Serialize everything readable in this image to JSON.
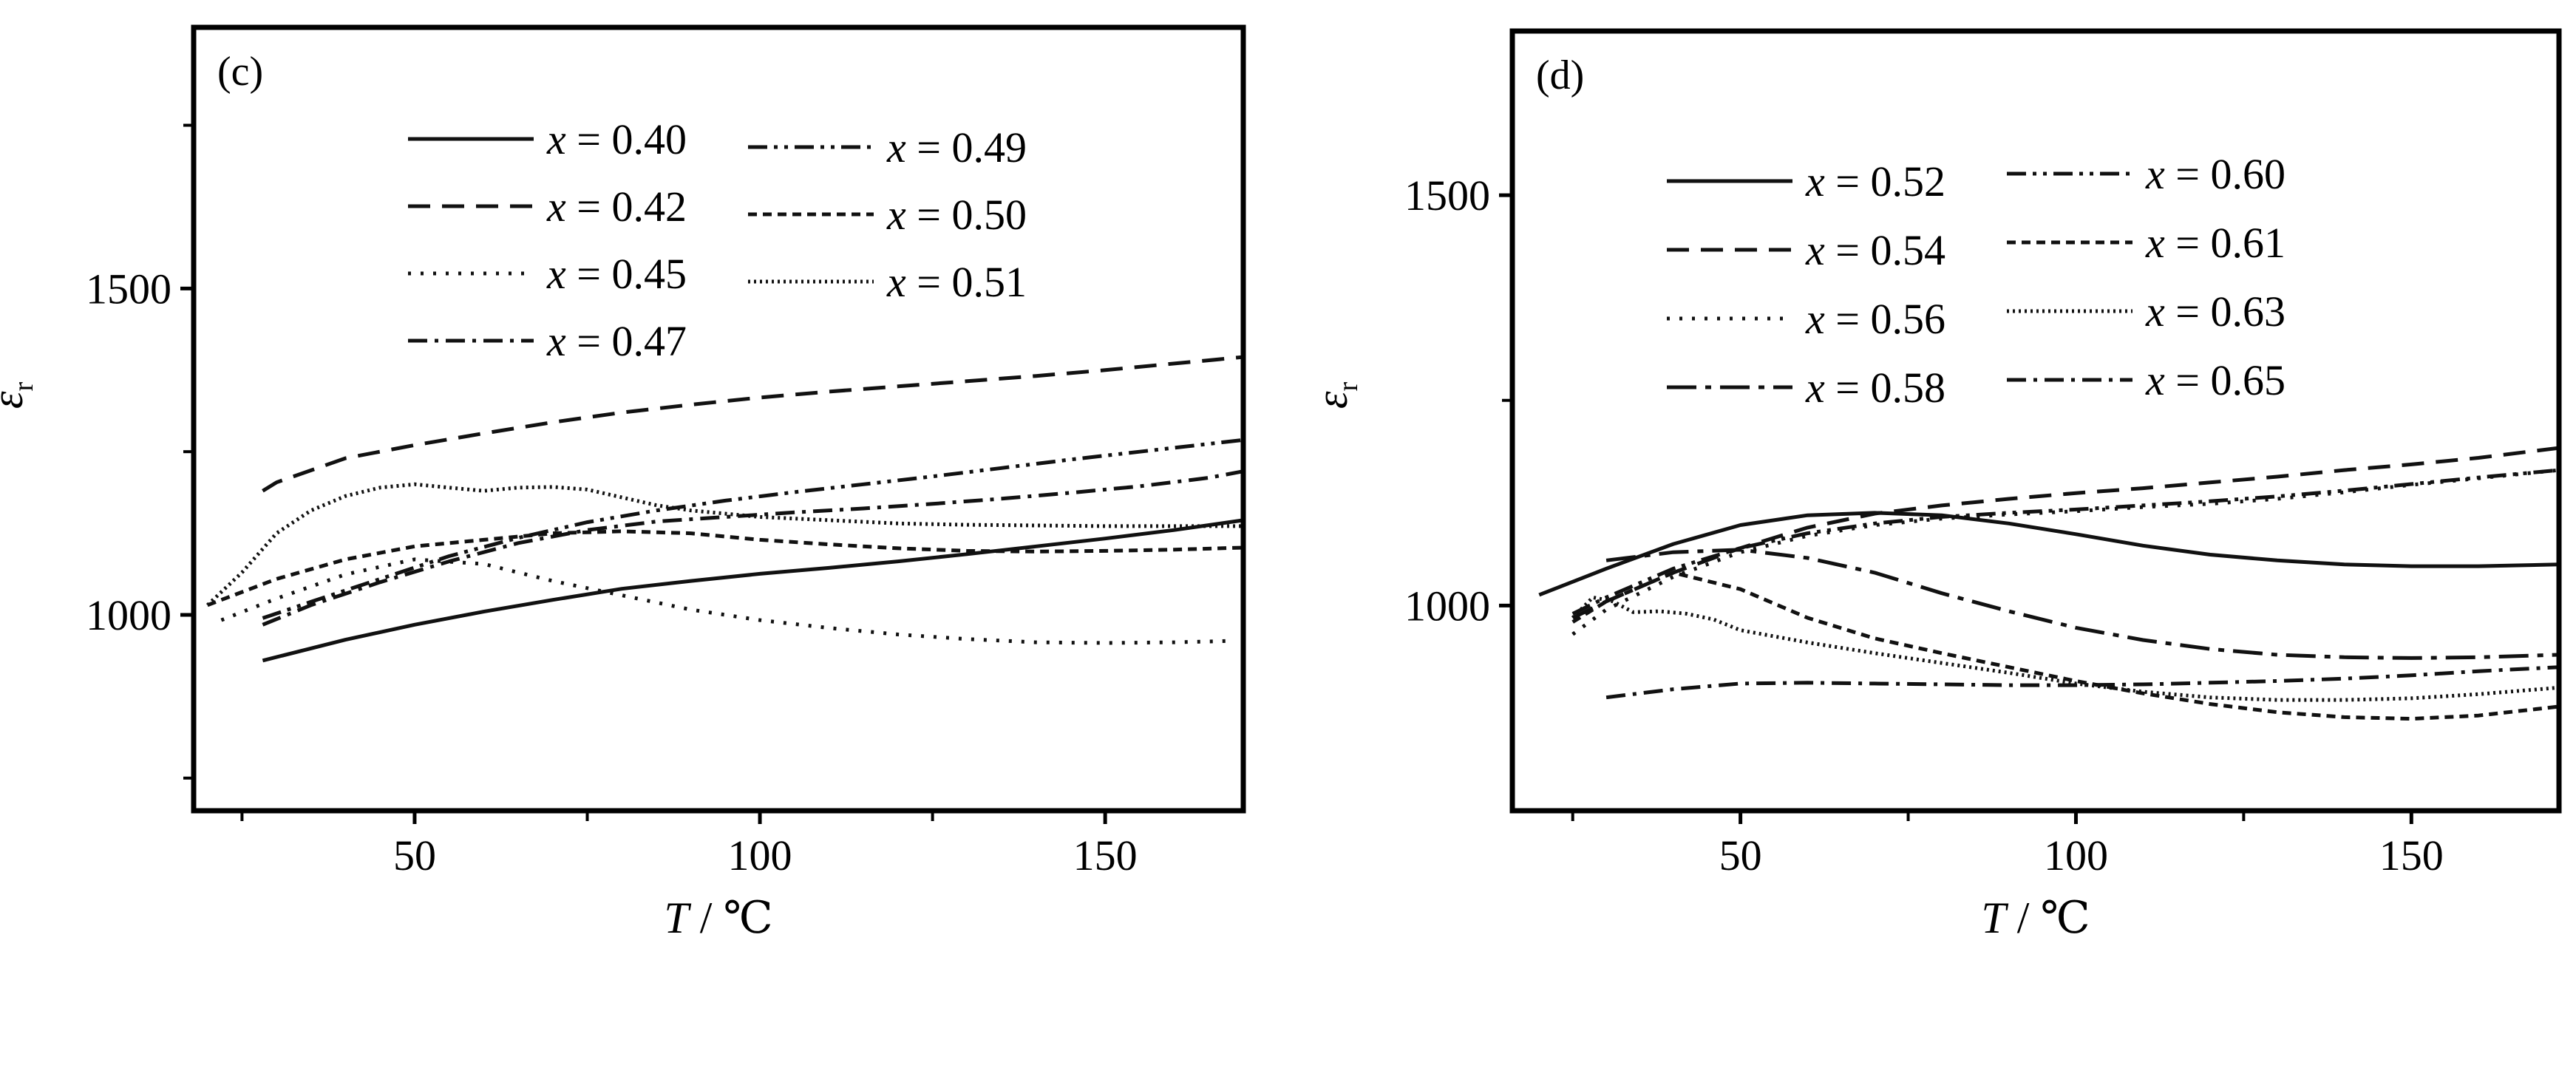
{
  "chart_data": [
    {
      "type": "line",
      "panel_label": "(c)",
      "xlabel_var": "T",
      "xlabel_unit": " / ℃",
      "ylabel_var": "ε",
      "ylabel_sub": "r",
      "xlim": [
        18,
        170
      ],
      "ylim": [
        700,
        1900
      ],
      "xticks": [
        50,
        100,
        150
      ],
      "yticks": [
        1000,
        1500
      ],
      "legend_position": "top",
      "grid": false,
      "series": [
        {
          "name": "x = 0.40",
          "dash": "solid",
          "x": [
            28,
            40,
            50,
            60,
            70,
            80,
            90,
            100,
            110,
            120,
            130,
            140,
            150,
            160,
            170
          ],
          "y": [
            930,
            962,
            985,
            1005,
            1023,
            1040,
            1052,
            1063,
            1072,
            1082,
            1093,
            1105,
            1117,
            1130,
            1145
          ]
        },
        {
          "name": "x = 0.42",
          "dash": "dashed",
          "x": [
            28,
            30,
            40,
            50,
            60,
            70,
            80,
            90,
            100,
            110,
            120,
            130,
            140,
            150,
            160,
            170
          ],
          "y": [
            1190,
            1203,
            1240,
            1260,
            1278,
            1295,
            1310,
            1322,
            1333,
            1342,
            1350,
            1358,
            1366,
            1375,
            1385,
            1395
          ]
        },
        {
          "name": "x = 0.45",
          "dash": "dotted",
          "x": [
            22,
            30,
            40,
            50,
            60,
            70,
            80,
            90,
            100,
            110,
            120,
            130,
            140,
            150,
            160,
            168
          ],
          "y": [
            992,
            1025,
            1062,
            1085,
            1078,
            1052,
            1030,
            1008,
            992,
            980,
            970,
            963,
            958,
            957,
            958,
            960
          ]
        },
        {
          "name": "x = 0.47",
          "dash": "dashdot",
          "x": [
            28,
            35,
            45,
            55,
            65,
            75,
            85,
            95,
            105,
            115,
            125,
            135,
            145,
            155,
            165,
            170
          ],
          "y": [
            985,
            1015,
            1050,
            1082,
            1110,
            1130,
            1143,
            1150,
            1157,
            1163,
            1170,
            1178,
            1187,
            1197,
            1210,
            1220
          ]
        },
        {
          "name": "x = 0.49",
          "dash": "dashdotdot",
          "x": [
            28,
            35,
            45,
            55,
            65,
            75,
            85,
            95,
            105,
            115,
            125,
            135,
            145,
            155,
            165,
            170
          ],
          "y": [
            995,
            1020,
            1055,
            1090,
            1118,
            1142,
            1160,
            1175,
            1188,
            1200,
            1212,
            1225,
            1238,
            1250,
            1262,
            1268
          ]
        },
        {
          "name": "x = 0.50",
          "dash": "shortdash",
          "x": [
            20,
            30,
            40,
            50,
            60,
            70,
            80,
            90,
            100,
            110,
            120,
            130,
            140,
            150,
            160,
            170
          ],
          "y": [
            1015,
            1055,
            1085,
            1105,
            1115,
            1125,
            1128,
            1125,
            1115,
            1108,
            1102,
            1098,
            1097,
            1098,
            1100,
            1103
          ]
        },
        {
          "name": "x = 0.51",
          "dash": "finedot",
          "x": [
            20,
            25,
            30,
            35,
            40,
            45,
            50,
            55,
            60,
            65,
            70,
            75,
            80,
            85,
            90,
            100,
            110,
            120,
            130,
            140,
            150,
            160,
            170
          ],
          "y": [
            1015,
            1065,
            1125,
            1160,
            1182,
            1195,
            1200,
            1195,
            1190,
            1195,
            1196,
            1192,
            1180,
            1168,
            1160,
            1150,
            1145,
            1140,
            1138,
            1137,
            1136,
            1136,
            1136
          ]
        }
      ]
    },
    {
      "type": "line",
      "panel_label": "(d)",
      "xlabel_var": "T",
      "xlabel_unit": " / ℃",
      "ylabel_var": "ε",
      "ylabel_sub": "r",
      "xlim": [
        16,
        172
      ],
      "ylim": [
        750,
        1700
      ],
      "xticks": [
        50,
        100,
        150
      ],
      "yticks": [
        1000,
        1500
      ],
      "legend_position": "top",
      "grid": false,
      "series": [
        {
          "name": "x = 0.52",
          "dash": "solid",
          "x": [
            20,
            30,
            40,
            50,
            60,
            70,
            80,
            90,
            100,
            110,
            120,
            130,
            140,
            150,
            160,
            172
          ],
          "y": [
            1013,
            1045,
            1075,
            1098,
            1110,
            1113,
            1110,
            1100,
            1087,
            1073,
            1062,
            1055,
            1050,
            1048,
            1048,
            1050
          ]
        },
        {
          "name": "x = 0.54",
          "dash": "dashed",
          "x": [
            25,
            30,
            40,
            50,
            60,
            70,
            80,
            90,
            100,
            110,
            120,
            130,
            140,
            150,
            160,
            172
          ],
          "y": [
            985,
            1005,
            1040,
            1070,
            1095,
            1112,
            1122,
            1130,
            1137,
            1143,
            1150,
            1157,
            1165,
            1172,
            1180,
            1192
          ]
        },
        {
          "name": "x = 0.56",
          "dash": "dotted",
          "x": [
            25,
            30,
            40,
            50,
            60,
            70,
            80,
            90,
            100,
            110,
            120,
            130,
            140,
            150,
            160,
            172
          ],
          "y": [
            965,
            995,
            1035,
            1065,
            1085,
            1098,
            1106,
            1111,
            1115,
            1120,
            1124,
            1130,
            1138,
            1147,
            1155,
            1165
          ]
        },
        {
          "name": "x = 0.58",
          "dash": "longdashdot",
          "x": [
            30,
            40,
            50,
            60,
            70,
            80,
            90,
            100,
            110,
            120,
            130,
            140,
            150,
            160,
            172
          ],
          "y": [
            1055,
            1065,
            1068,
            1058,
            1040,
            1015,
            993,
            973,
            958,
            947,
            940,
            937,
            936,
            937,
            940
          ]
        },
        {
          "name": "x = 0.60",
          "dash": "dashdotdot",
          "x": [
            25,
            30,
            40,
            50,
            60,
            70,
            80,
            90,
            100,
            110,
            120,
            130,
            140,
            150,
            160,
            172
          ],
          "y": [
            990,
            1010,
            1045,
            1070,
            1088,
            1100,
            1108,
            1113,
            1117,
            1122,
            1127,
            1133,
            1140,
            1148,
            1156,
            1165
          ]
        },
        {
          "name": "x = 0.61",
          "dash": "shortdash",
          "x": [
            25,
            30,
            40,
            50,
            60,
            70,
            80,
            90,
            100,
            110,
            120,
            130,
            140,
            150,
            160,
            172
          ],
          "y": [
            980,
            1005,
            1040,
            1020,
            985,
            960,
            942,
            925,
            908,
            893,
            880,
            870,
            864,
            862,
            866,
            877
          ]
        },
        {
          "name": "x = 0.63",
          "dash": "finedot",
          "x": [
            25,
            28,
            31,
            34,
            38,
            42,
            46,
            50,
            60,
            70,
            80,
            90,
            100,
            110,
            120,
            130,
            140,
            150,
            160,
            172
          ],
          "y": [
            985,
            1010,
            1005,
            992,
            993,
            990,
            983,
            970,
            955,
            942,
            930,
            918,
            905,
            895,
            888,
            885,
            885,
            887,
            892,
            900
          ]
        },
        {
          "name": "x = 0.65",
          "dash": "dashdot",
          "x": [
            30,
            40,
            50,
            60,
            70,
            80,
            90,
            100,
            110,
            120,
            130,
            140,
            150,
            160,
            172
          ],
          "y": [
            888,
            898,
            905,
            906,
            905,
            904,
            903,
            903,
            904,
            906,
            908,
            911,
            915,
            920,
            925
          ]
        }
      ]
    }
  ]
}
